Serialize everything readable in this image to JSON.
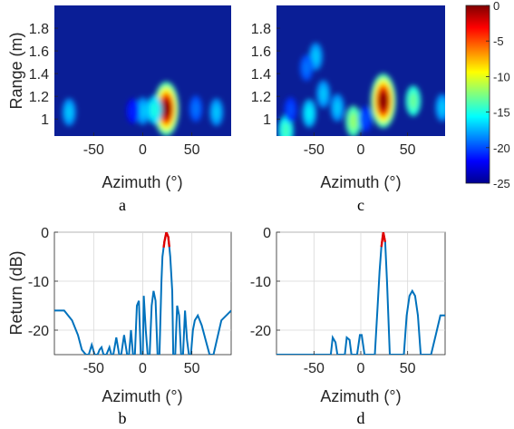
{
  "colors": {
    "line": "#0072BD",
    "peak": "#E00000",
    "grid": "#D9D9D9",
    "axis": "#262626"
  },
  "chart_data": [
    {
      "panel": "a",
      "type": "heatmap",
      "xlabel": "Azimuth (°)",
      "ylabel": "Range (m)",
      "x_ticks": [
        "-50",
        "0",
        "50"
      ],
      "y_ticks": [
        "1",
        "1.2",
        "1.4",
        "1.6",
        "1.8"
      ],
      "xlim": [
        -90,
        90
      ],
      "ylim": [
        0.85,
        2.0
      ],
      "colormap": "jet",
      "color_range_db": [
        -25,
        0
      ],
      "blobs": [
        {
          "az": 24,
          "range": 1.09,
          "level_db": 0
        },
        {
          "az": 0,
          "range": 1.07,
          "level_db": -17
        },
        {
          "az": 12,
          "range": 1.08,
          "level_db": -15
        },
        {
          "az": -10,
          "range": 1.07,
          "level_db": -21
        },
        {
          "az": 54,
          "range": 1.09,
          "level_db": -19
        },
        {
          "az": -75,
          "range": 1.06,
          "level_db": -17
        },
        {
          "az": 75,
          "range": 1.06,
          "level_db": -17
        }
      ]
    },
    {
      "panel": "c",
      "type": "heatmap",
      "xlabel": "Azimuth (°)",
      "ylabel": "",
      "x_ticks": [
        "-50",
        "0",
        "50"
      ],
      "y_ticks": [
        "1",
        "1.2",
        "1.4",
        "1.6",
        "1.8"
      ],
      "xlim": [
        -90,
        90
      ],
      "ylim": [
        0.85,
        2.0
      ],
      "colormap": "jet",
      "color_range_db": [
        -25,
        0
      ],
      "blobs": [
        {
          "az": 24,
          "range": 1.16,
          "level_db": 0
        },
        {
          "az": 56,
          "range": 1.16,
          "level_db": -13
        },
        {
          "az": -48,
          "range": 1.55,
          "level_db": -17
        },
        {
          "az": -58,
          "range": 1.45,
          "level_db": -19
        },
        {
          "az": -40,
          "range": 1.22,
          "level_db": -17
        },
        {
          "az": -55,
          "range": 1.05,
          "level_db": -16
        },
        {
          "az": -25,
          "range": 1.1,
          "level_db": -17
        },
        {
          "az": -8,
          "range": 0.98,
          "level_db": -12
        },
        {
          "az": 5,
          "range": 1.0,
          "level_db": -20
        },
        {
          "az": -80,
          "range": 0.9,
          "level_db": -14
        },
        {
          "az": 87,
          "range": 1.1,
          "level_db": -17
        },
        {
          "az": -75,
          "range": 1.08,
          "level_db": -20
        }
      ]
    },
    {
      "panel": "b",
      "type": "line",
      "xlabel": "Azimuth (°)",
      "ylabel": "Return (dB)",
      "x_ticks": [
        "-50",
        "0",
        "50"
      ],
      "y_ticks": [
        "0",
        "-10",
        "-20"
      ],
      "xlim": [
        -90,
        90
      ],
      "ylim": [
        -25,
        0
      ],
      "grid": true,
      "series": [
        {
          "x": [
            -90,
            -80,
            -72,
            -66,
            -62,
            -58,
            -55,
            -52,
            -49,
            -46,
            -44,
            -42,
            -40,
            -37,
            -34,
            -32,
            -30,
            -27,
            -24,
            -22,
            -19,
            -16,
            -14,
            -12,
            -10,
            -8,
            -6,
            -4,
            -2,
            0,
            1,
            3,
            5,
            7,
            9,
            11,
            13,
            15,
            17,
            19,
            20,
            22,
            24,
            26,
            28,
            30,
            31,
            33,
            35,
            37,
            39,
            41,
            43,
            45,
            47,
            49,
            51,
            53,
            56,
            60,
            64,
            68,
            72,
            80,
            90
          ],
          "y": [
            -16,
            -16,
            -18,
            -21,
            -24,
            -25,
            -25,
            -23,
            -25,
            -25,
            -24,
            -23.5,
            -25,
            -25,
            -23.5,
            -25,
            -25,
            -21.5,
            -25,
            -25,
            -21,
            -25,
            -25,
            -20,
            -25,
            -25,
            -15,
            -14,
            -25,
            -25,
            -13,
            -20,
            -25,
            -25,
            -15,
            -12,
            -14,
            -25,
            -25,
            -10,
            -5,
            -2,
            0,
            -1,
            -5,
            -12,
            -25,
            -25,
            -15,
            -17,
            -25,
            -25,
            -16,
            -22,
            -25,
            -25,
            -20,
            -18,
            -17,
            -19,
            -22,
            -25,
            -25,
            -18,
            -16
          ]
        }
      ],
      "peak_highlight": {
        "x_from": 21,
        "x_to": 27
      }
    },
    {
      "panel": "d",
      "type": "line",
      "xlabel": "Azimuth (°)",
      "ylabel": "",
      "x_ticks": [
        "-50",
        "0",
        "50"
      ],
      "y_ticks": [
        "0",
        "-10",
        "-20"
      ],
      "xlim": [
        -90,
        90
      ],
      "ylim": [
        -25,
        0
      ],
      "grid": true,
      "series": [
        {
          "x": [
            -90,
            -35,
            -32,
            -30,
            -27,
            -25,
            -22,
            -20,
            -17,
            -15,
            -12,
            -10,
            -7,
            -4,
            -1,
            1,
            4,
            8,
            12,
            15,
            18,
            20,
            22,
            24,
            26,
            28,
            31,
            34,
            38,
            42,
            46,
            49,
            52,
            55,
            58,
            61,
            64,
            67,
            70,
            75,
            80,
            85,
            90
          ],
          "y": [
            -25,
            -25,
            -25,
            -21.5,
            -22.5,
            -25,
            -25,
            -25,
            -25,
            -21.5,
            -22,
            -25,
            -25,
            -25,
            -21,
            -21,
            -25,
            -25,
            -25,
            -25,
            -15,
            -8,
            -3,
            0,
            -2,
            -10,
            -25,
            -25,
            -25,
            -25,
            -25,
            -17,
            -13,
            -12,
            -13,
            -17,
            -25,
            -25,
            -25,
            -25,
            -21,
            -17,
            -17
          ]
        }
      ],
      "peak_highlight": {
        "x_from": 20,
        "x_to": 28
      }
    }
  ],
  "colorbar": {
    "ticks": [
      "0",
      "-5",
      "-10",
      "-15",
      "-20",
      "-25"
    ],
    "range_db": [
      -25,
      0
    ]
  },
  "labels": {
    "a": "a",
    "b": "b",
    "c": "c",
    "d": "d"
  }
}
